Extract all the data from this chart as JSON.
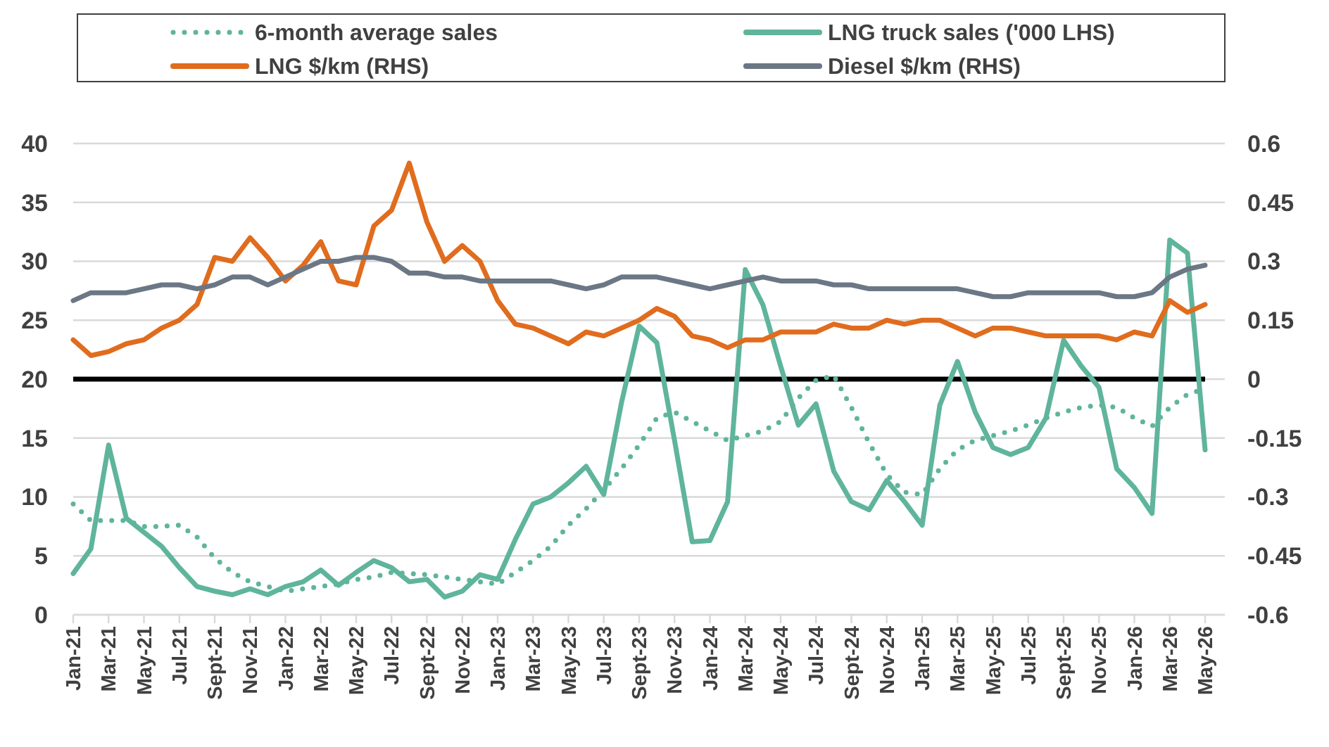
{
  "chart_data": {
    "type": "line",
    "categories": [
      "Jan-21",
      null,
      "Mar-21",
      null,
      "May-21",
      null,
      "Jul-21",
      null,
      "Sept-21",
      null,
      "Nov-21",
      null,
      "Jan-22",
      null,
      "Mar-22",
      null,
      "May-22",
      null,
      "Jul-22",
      null,
      "Sept-22",
      null,
      "Nov-22",
      null,
      "Jan-23",
      null,
      "Mar-23",
      null,
      "May-23",
      null,
      "Jul-23",
      null,
      "Sept-23",
      null,
      "Nov-23",
      null,
      "Jan-24",
      null,
      "Mar-24",
      null,
      "May-24",
      null,
      "Jul-24",
      null,
      "Sept-24",
      null,
      "Nov-24",
      null,
      "Jan-25",
      null,
      "Mar-25",
      null,
      "May-25",
      null,
      "Jul-25",
      null,
      "Sept-25",
      null,
      "Nov-25",
      null,
      "Jan-26",
      null,
      "Mar-26",
      null,
      "May-26"
    ],
    "series": [
      {
        "name": "6-month average sales",
        "color": "#5fb49c",
        "line_style": "dotted",
        "values": [
          9.4,
          8.0,
          8.0,
          8.0,
          7.5,
          7.5,
          7.6,
          6.6,
          4.8,
          3.6,
          2.8,
          2.4,
          2.0,
          2.2,
          2.4,
          2.6,
          3.0,
          3.2,
          3.6,
          3.5,
          3.4,
          3.2,
          3.0,
          2.8,
          2.6,
          3.6,
          4.6,
          5.8,
          7.6,
          9.0,
          10.6,
          12.4,
          14.4,
          16.7,
          17.2,
          16.4,
          15.6,
          14.8,
          15.2,
          15.6,
          16.4,
          18.4,
          19.9,
          20.3,
          17.6,
          14.6,
          11.9,
          10.4,
          10.2,
          12.4,
          14.0,
          14.8,
          15.2,
          15.6,
          16.1,
          16.7,
          17.2,
          17.6,
          17.8,
          17.6,
          16.7,
          16.0,
          17.6,
          18.7,
          19.2
        ]
      },
      {
        "name": "LNG truck sales ('000 LHS)",
        "color": "#5fb49c",
        "line_style": "solid",
        "values": [
          3.5,
          5.6,
          14.4,
          8.2,
          7.0,
          5.8,
          4.0,
          2.4,
          2.0,
          1.7,
          2.2,
          1.7,
          2.4,
          2.8,
          3.8,
          2.5,
          3.6,
          4.6,
          4.0,
          2.8,
          3.0,
          1.5,
          2.0,
          3.4,
          3.0,
          6.4,
          9.4,
          10.0,
          11.2,
          12.6,
          10.2,
          18.0,
          24.5,
          23.1,
          14.8,
          6.2,
          6.3,
          9.6,
          29.3,
          26.3,
          21.1,
          16.1,
          17.9,
          12.2,
          9.6,
          8.9,
          11.4,
          9.6,
          7.6,
          17.8,
          21.5,
          17.2,
          14.2,
          13.6,
          14.2,
          16.7,
          23.3,
          21.1,
          19.3,
          12.4,
          10.8,
          8.6,
          31.8,
          30.7,
          14.0
        ]
      },
      {
        "name": "LNG $/km (RHS)",
        "color": "#e06c1e",
        "axis": "y2",
        "line_style": "solid",
        "values": [
          0.1,
          0.06,
          0.07,
          0.09,
          0.1,
          0.13,
          0.15,
          0.19,
          0.31,
          0.3,
          0.36,
          0.31,
          0.25,
          0.29,
          0.35,
          0.25,
          0.24,
          0.39,
          0.43,
          0.55,
          0.4,
          0.3,
          0.34,
          0.3,
          0.2,
          0.14,
          0.13,
          0.11,
          0.09,
          0.12,
          0.11,
          0.13,
          0.15,
          0.18,
          0.16,
          0.11,
          0.1,
          0.08,
          0.1,
          0.1,
          0.12,
          0.12,
          0.12,
          0.14,
          0.13,
          0.13,
          0.15,
          0.14,
          0.15,
          0.15,
          0.13,
          0.11,
          0.13,
          0.13,
          0.12,
          0.11,
          0.11,
          0.11,
          0.11,
          0.1,
          0.12,
          0.11,
          0.2,
          0.17,
          0.19
        ]
      },
      {
        "name": "Diesel $/km (RHS)",
        "color": "#6b7785",
        "axis": "y2",
        "line_style": "solid",
        "values": [
          0.2,
          0.22,
          0.22,
          0.22,
          0.23,
          0.24,
          0.24,
          0.23,
          0.24,
          0.26,
          0.26,
          0.24,
          0.26,
          0.28,
          0.3,
          0.3,
          0.31,
          0.31,
          0.3,
          0.27,
          0.27,
          0.26,
          0.26,
          0.25,
          0.25,
          0.25,
          0.25,
          0.25,
          0.24,
          0.23,
          0.24,
          0.26,
          0.26,
          0.26,
          0.25,
          0.24,
          0.23,
          0.24,
          0.25,
          0.26,
          0.25,
          0.25,
          0.25,
          0.24,
          0.24,
          0.23,
          0.23,
          0.23,
          0.23,
          0.23,
          0.23,
          0.22,
          0.21,
          0.21,
          0.22,
          0.22,
          0.22,
          0.22,
          0.22,
          0.21,
          0.21,
          0.22,
          0.26,
          0.28,
          0.29
        ]
      }
    ],
    "ylim": [
      0,
      40
    ],
    "yticks": [
      0,
      5,
      10,
      15,
      20,
      25,
      30,
      35,
      40
    ],
    "y2lim": [
      -0.6,
      0.6
    ],
    "y2ticks": [
      -0.6,
      -0.45,
      -0.3,
      -0.15,
      0,
      0.15,
      0.3,
      0.45,
      0.6
    ],
    "ref_lines": [
      {
        "axis": "y",
        "value": 20,
        "color": "#000000"
      }
    ],
    "grid": "y",
    "legend": "top"
  }
}
